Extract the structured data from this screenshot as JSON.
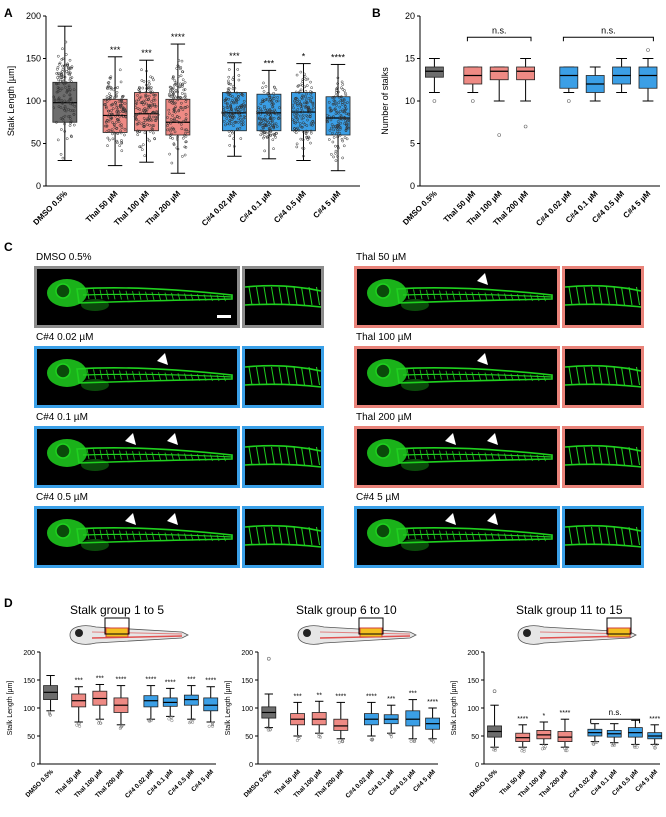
{
  "panels": {
    "A": "A",
    "B": "B",
    "C": "C",
    "D": "D"
  },
  "colors": {
    "dmso": "#6d6d6d",
    "thal": "#ee8a84",
    "c4": "#3b9fe6",
    "fish": "#1fd11f"
  },
  "chart_data": [
    {
      "type": "box",
      "panel": "A",
      "ylabel": "Stalk Length [µm]",
      "ylim": [
        0,
        200
      ],
      "yticks": [
        0,
        50,
        100,
        150,
        200
      ],
      "categories": [
        "DMSO 0.5%",
        "Thal 50 µM",
        "Thal 100 µM",
        "Thal 200 µM",
        "C#4 0.02 µM",
        "C#4 0.1 µM",
        "C#4 0.5 µM",
        "C#4 5 µM"
      ],
      "boxes": [
        {
          "min": 30,
          "q1": 75,
          "median": 98,
          "q3": 122,
          "max": 188,
          "group": "dmso"
        },
        {
          "min": 24,
          "q1": 63,
          "median": 83,
          "q3": 102,
          "max": 152,
          "group": "thal"
        },
        {
          "min": 28,
          "q1": 65,
          "median": 85,
          "q3": 110,
          "max": 148,
          "group": "thal"
        },
        {
          "min": 15,
          "q1": 60,
          "median": 75,
          "q3": 102,
          "max": 167,
          "group": "thal"
        },
        {
          "min": 35,
          "q1": 65,
          "median": 86,
          "q3": 110,
          "max": 145,
          "group": "c4"
        },
        {
          "min": 32,
          "q1": 65,
          "median": 86,
          "q3": 108,
          "max": 136,
          "group": "c4"
        },
        {
          "min": 30,
          "q1": 65,
          "median": 87,
          "q3": 110,
          "max": 144,
          "group": "c4"
        },
        {
          "min": 18,
          "q1": 60,
          "median": 80,
          "q3": 105,
          "max": 143,
          "group": "c4"
        }
      ],
      "significance": [
        "",
        "***",
        "***",
        "****",
        "***",
        "***",
        "*",
        "****"
      ]
    },
    {
      "type": "box",
      "panel": "B",
      "ylabel": "Number of stalks",
      "ylim": [
        0,
        20
      ],
      "yticks": [
        0,
        5,
        10,
        15,
        20
      ],
      "categories": [
        "DMSO 0.5%",
        "Thal 50 µM",
        "Thal 100 µM",
        "Thal 200 µM",
        "C#4 0.02 µM",
        "C#4 0.1 µM",
        "C#4 0.5 µM",
        "C#4 5 µM"
      ],
      "boxes": [
        {
          "min": 11,
          "q1": 12.8,
          "median": 13.5,
          "q3": 14,
          "max": 15,
          "outliers": [
            10
          ],
          "group": "dmso"
        },
        {
          "min": 11,
          "q1": 12,
          "median": 13,
          "q3": 14,
          "max": 14,
          "outliers": [
            10
          ],
          "group": "thal"
        },
        {
          "min": 10,
          "q1": 12.5,
          "median": 13.5,
          "q3": 14,
          "max": 14,
          "outliers": [
            6
          ],
          "group": "thal"
        },
        {
          "min": 10,
          "q1": 12.5,
          "median": 13.5,
          "q3": 14,
          "max": 15,
          "outliers": [
            7
          ],
          "group": "thal"
        },
        {
          "min": 11,
          "q1": 11.5,
          "median": 13,
          "q3": 14,
          "max": 14,
          "outliers": [
            10
          ],
          "group": "c4"
        },
        {
          "min": 10,
          "q1": 11,
          "median": 12,
          "q3": 13,
          "max": 14,
          "group": "c4"
        },
        {
          "min": 11,
          "q1": 12,
          "median": 13,
          "q3": 14,
          "max": 15,
          "group": "c4"
        },
        {
          "min": 10,
          "q1": 11.5,
          "median": 13,
          "q3": 14,
          "max": 15,
          "outliers": [
            16
          ],
          "group": "c4"
        }
      ],
      "brackets": [
        {
          "from": 1,
          "to": 3,
          "label": "n.s."
        },
        {
          "from": 4,
          "to": 7,
          "label": "n.s."
        }
      ]
    },
    {
      "type": "box",
      "panel": "D1",
      "title": "Stalk group 1 to 5",
      "ylabel": "Stalk Length [µm]",
      "ylim": [
        0,
        200
      ],
      "yticks": [
        0,
        50,
        100,
        150,
        200
      ],
      "categories": [
        "DMSO 0.5%",
        "Thal 50 µM",
        "Thal 100 µM",
        "Thal 200 µM",
        "C#4 0.02 µM",
        "C#4 0.1 µM",
        "C#4 0.5 µM",
        "C#4 5 µM"
      ],
      "boxes": [
        {
          "min": 95,
          "q1": 115,
          "median": 128,
          "q3": 140,
          "max": 158,
          "group": "dmso"
        },
        {
          "min": 75,
          "q1": 102,
          "median": 113,
          "q3": 125,
          "max": 138,
          "group": "thal"
        },
        {
          "min": 80,
          "q1": 105,
          "median": 117,
          "q3": 130,
          "max": 142,
          "group": "thal"
        },
        {
          "min": 70,
          "q1": 92,
          "median": 105,
          "q3": 118,
          "max": 140,
          "group": "thal"
        },
        {
          "min": 80,
          "q1": 102,
          "median": 113,
          "q3": 122,
          "max": 140,
          "group": "c4"
        },
        {
          "min": 85,
          "q1": 103,
          "median": 110,
          "q3": 118,
          "max": 135,
          "group": "c4"
        },
        {
          "min": 80,
          "q1": 105,
          "median": 115,
          "q3": 123,
          "max": 140,
          "group": "c4"
        },
        {
          "min": 75,
          "q1": 95,
          "median": 105,
          "q3": 118,
          "max": 138,
          "group": "c4"
        }
      ],
      "significance": [
        "",
        "***",
        "***",
        "****",
        "****",
        "****",
        "***",
        "****"
      ]
    },
    {
      "type": "box",
      "panel": "D2",
      "title": "Stalk group 6 to 10",
      "ylabel": "Stalk Length [µm]",
      "ylim": [
        0,
        200
      ],
      "yticks": [
        0,
        50,
        100,
        150,
        200
      ],
      "categories": [
        "DMSO 0.5%",
        "Thal 50 µM",
        "Thal 100 µM",
        "Thal 200 µM",
        "C#4 0.02 µM",
        "C#4 0.1 µM",
        "C#4 0.5 µM",
        "C#4 5 µM"
      ],
      "boxes": [
        {
          "min": 65,
          "q1": 82,
          "median": 92,
          "q3": 102,
          "max": 125,
          "outliers": [
            188
          ],
          "group": "dmso"
        },
        {
          "min": 50,
          "q1": 70,
          "median": 80,
          "q3": 90,
          "max": 110,
          "group": "thal"
        },
        {
          "min": 55,
          "q1": 70,
          "median": 80,
          "q3": 92,
          "max": 112,
          "group": "thal"
        },
        {
          "min": 45,
          "q1": 60,
          "median": 68,
          "q3": 80,
          "max": 110,
          "group": "thal"
        },
        {
          "min": 50,
          "q1": 70,
          "median": 80,
          "q3": 90,
          "max": 110,
          "group": "c4"
        },
        {
          "min": 55,
          "q1": 72,
          "median": 80,
          "q3": 88,
          "max": 105,
          "group": "c4"
        },
        {
          "min": 45,
          "q1": 68,
          "median": 80,
          "q3": 95,
          "max": 115,
          "group": "c4"
        },
        {
          "min": 45,
          "q1": 62,
          "median": 72,
          "q3": 82,
          "max": 100,
          "group": "c4"
        }
      ],
      "significance": [
        "",
        "***",
        "**",
        "****",
        "****",
        "***",
        "***",
        "****"
      ]
    },
    {
      "type": "box",
      "panel": "D3",
      "title": "Stalk group 11 to 15",
      "ylabel": "Stalk Length [µm]",
      "ylim": [
        0,
        200
      ],
      "yticks": [
        0,
        50,
        100,
        150,
        200
      ],
      "categories": [
        "DMSO 0.5%",
        "Thal 50 µM",
        "Thal 100 µM",
        "Thal 200 µM",
        "C#4 0.02 µM",
        "C#4 0.1 µM",
        "C#4 0.5 µM",
        "C#4 5 µM"
      ],
      "boxes": [
        {
          "min": 30,
          "q1": 48,
          "median": 58,
          "q3": 68,
          "max": 105,
          "outliers": [
            130
          ],
          "group": "dmso"
        },
        {
          "min": 30,
          "q1": 40,
          "median": 47,
          "q3": 55,
          "max": 70,
          "group": "thal"
        },
        {
          "min": 35,
          "q1": 45,
          "median": 52,
          "q3": 60,
          "max": 75,
          "group": "thal"
        },
        {
          "min": 30,
          "q1": 40,
          "median": 48,
          "q3": 58,
          "max": 80,
          "group": "thal"
        },
        {
          "min": 40,
          "q1": 50,
          "median": 56,
          "q3": 62,
          "max": 72,
          "group": "c4"
        },
        {
          "min": 38,
          "q1": 48,
          "median": 54,
          "q3": 60,
          "max": 72,
          "group": "c4"
        },
        {
          "min": 35,
          "q1": 48,
          "median": 56,
          "q3": 65,
          "max": 78,
          "group": "c4"
        },
        {
          "min": 35,
          "q1": 45,
          "median": 50,
          "q3": 56,
          "max": 70,
          "group": "c4"
        }
      ],
      "significance": [
        "",
        "****",
        "*",
        "****",
        "",
        "",
        "",
        "****"
      ],
      "brackets": [
        {
          "from": 4,
          "to": 6,
          "label": "n.s."
        }
      ]
    }
  ],
  "panelC": {
    "conditions": [
      {
        "label": "DMSO 0.5%",
        "border": "gray",
        "arrows": 0,
        "scalebar": true
      },
      {
        "label": "Thal 50 µM",
        "border": "red",
        "arrows": 1
      },
      {
        "label": "C#4 0.02 µM",
        "border": "blue",
        "arrows": 1
      },
      {
        "label": "Thal 100 µM",
        "border": "red",
        "arrows": 1
      },
      {
        "label": "C#4 0.1 µM",
        "border": "blue",
        "arrows": 2
      },
      {
        "label": "Thal 200 µM",
        "border": "red",
        "arrows": 2
      },
      {
        "label": "C#4 0.5 µM",
        "border": "blue",
        "arrows": 2
      },
      {
        "label": "C#4 5 µM",
        "border": "blue",
        "arrows": 2
      }
    ]
  }
}
